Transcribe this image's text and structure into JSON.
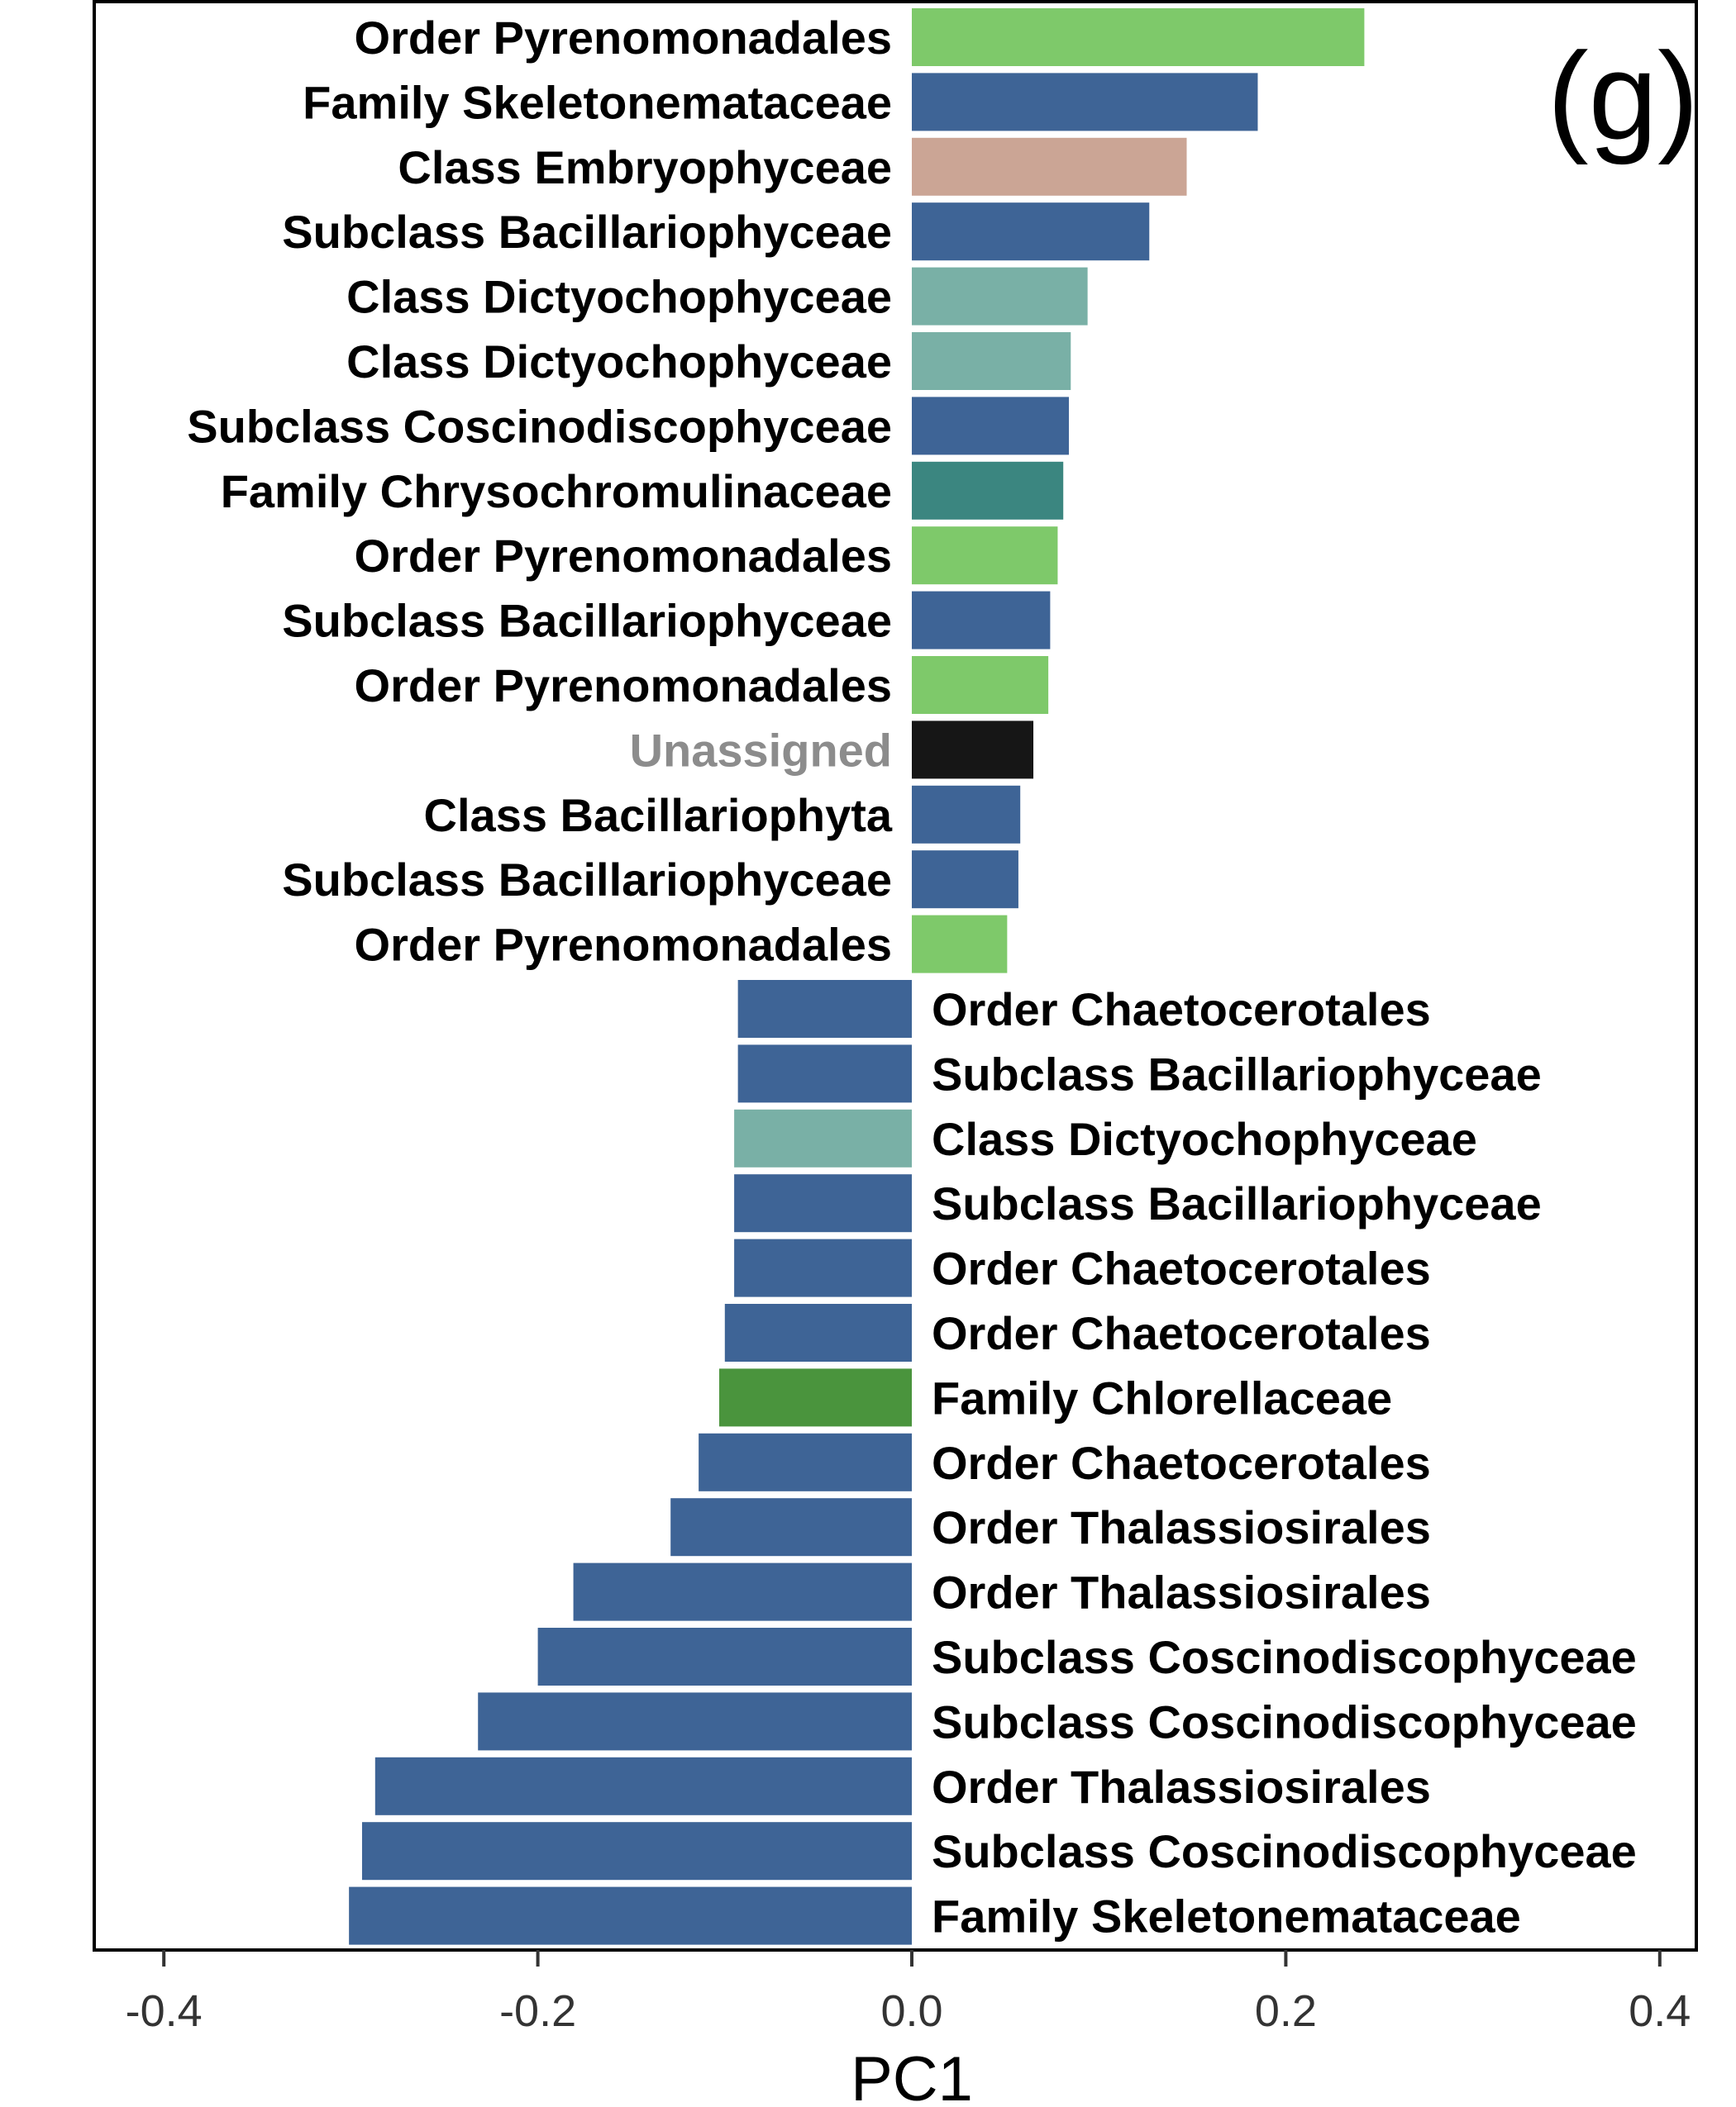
{
  "chart_data": {
    "type": "bar",
    "orientation": "horizontal",
    "panel_label": "(g)",
    "xlabel": "PC1",
    "ylabel": "",
    "xlim": [
      -0.46,
      0.46
    ],
    "xticks": [
      -0.4,
      -0.2,
      0.0,
      0.2,
      0.4
    ],
    "xtick_labels": [
      "-0.4",
      "-0.2",
      "0.0",
      "0.2",
      "0.4"
    ],
    "grid": false,
    "legend": "none",
    "colors": {
      "Order Pyrenomonadales": "#7ec96a",
      "Family Skeletonemataceae": "#3e6496",
      "Class Embryophyceae": "#cba595",
      "Subclass Bacillariophyceae": "#3e6496",
      "Class Dictyochophyceae": "#79b0a6",
      "Subclass Coscinodiscophyceae": "#3e6496",
      "Family Chrysochromulinaceae": "#3b8680",
      "Unassigned": "#161616",
      "Class Bacillariophyta": "#3e6496",
      "Order Chaetocerotales": "#3e6496",
      "Family Chlorellaceae": "#4a943d",
      "Order Thalassiosirales": "#3e6496",
      "label_default": "#000000",
      "label_unassigned": "#8c8c8c"
    },
    "bars": [
      {
        "label": "Order Pyrenomonadales",
        "value": 0.242
      },
      {
        "label": "Family Skeletonemataceae",
        "value": 0.185
      },
      {
        "label": "Class Embryophyceae",
        "value": 0.147
      },
      {
        "label": "Subclass Bacillariophyceae",
        "value": 0.127
      },
      {
        "label": "Class Dictyochophyceae",
        "value": 0.094
      },
      {
        "label": "Class Dictyochophyceae",
        "value": 0.085
      },
      {
        "label": "Subclass Coscinodiscophyceae",
        "value": 0.084
      },
      {
        "label": "Family Chrysochromulinaceae",
        "value": 0.081
      },
      {
        "label": "Order Pyrenomonadales",
        "value": 0.078
      },
      {
        "label": "Subclass Bacillariophyceae",
        "value": 0.074
      },
      {
        "label": "Order Pyrenomonadales",
        "value": 0.073
      },
      {
        "label": "Unassigned",
        "value": 0.065
      },
      {
        "label": "Class Bacillariophyta",
        "value": 0.058
      },
      {
        "label": "Subclass Bacillariophyceae",
        "value": 0.057
      },
      {
        "label": "Order Pyrenomonadales",
        "value": 0.051
      },
      {
        "label": "Order Chaetocerotales",
        "value": -0.093
      },
      {
        "label": "Subclass Bacillariophyceae",
        "value": -0.093
      },
      {
        "label": "Class Dictyochophyceae",
        "value": -0.095
      },
      {
        "label": "Subclass Bacillariophyceae",
        "value": -0.095
      },
      {
        "label": "Order Chaetocerotales",
        "value": -0.095
      },
      {
        "label": "Order Chaetocerotales",
        "value": -0.1
      },
      {
        "label": "Family Chlorellaceae",
        "value": -0.103
      },
      {
        "label": "Order Chaetocerotales",
        "value": -0.114
      },
      {
        "label": "Order Thalassiosirales",
        "value": -0.129
      },
      {
        "label": "Order Thalassiosirales",
        "value": -0.181
      },
      {
        "label": "Subclass Coscinodiscophyceae",
        "value": -0.2
      },
      {
        "label": "Subclass Coscinodiscophyceae",
        "value": -0.232
      },
      {
        "label": "Order Thalassiosirales",
        "value": -0.287
      },
      {
        "label": "Subclass Coscinodiscophyceae",
        "value": -0.294
      },
      {
        "label": "Family Skeletonemataceae",
        "value": -0.301
      }
    ]
  }
}
